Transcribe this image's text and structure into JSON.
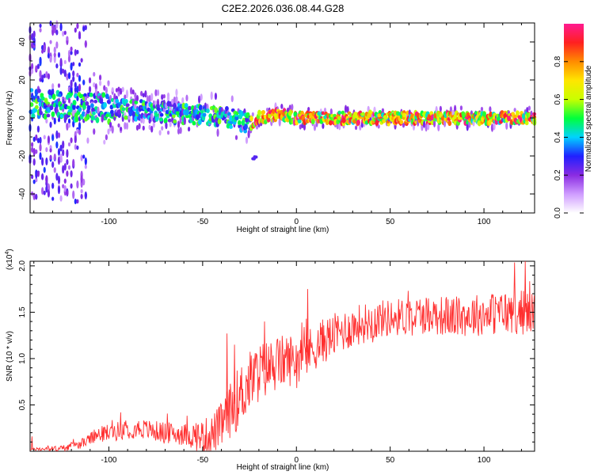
{
  "title": "C2E2.2026.036.08.44.G28",
  "chart_data": [
    {
      "type": "heatmap",
      "name": "spectrogram",
      "xlabel": "Height of straight line (km)",
      "ylabel": "Frequency (Hz)",
      "xlim": [
        -142,
        127
      ],
      "ylim": [
        -50,
        50
      ],
      "xticks": [
        -100,
        -50,
        0,
        50,
        100
      ],
      "yticks": [
        -40,
        -20,
        0,
        20,
        40
      ],
      "ridge_frequency_hz": [
        [
          -142,
          8
        ],
        [
          -120,
          6
        ],
        [
          -100,
          5
        ],
        [
          -80,
          4
        ],
        [
          -60,
          2
        ],
        [
          -40,
          1
        ],
        [
          -25,
          -3
        ],
        [
          -20,
          0
        ],
        [
          -15,
          1
        ],
        [
          -10,
          2
        ],
        [
          0,
          0
        ],
        [
          30,
          0
        ],
        [
          60,
          0
        ],
        [
          100,
          0
        ],
        [
          127,
          0
        ]
      ],
      "colorbar": {
        "label": "Normalized spectral amplitude",
        "range": [
          0.0,
          1.0
        ],
        "ticks": [
          "0.0",
          "0.2",
          "0.4",
          "0.6",
          "0.8"
        ],
        "colors": [
          "#ffffff",
          "#cf9cff",
          "#8a2be2",
          "#2020ff",
          "#00d2ff",
          "#00ff3c",
          "#c8ff00",
          "#ffe600",
          "#ff8c00",
          "#ff2020",
          "#ff1a90"
        ]
      }
    },
    {
      "type": "line",
      "name": "snr",
      "xlabel": "Height of straight line (km)",
      "ylabel": "SNR (10 * v/v)",
      "y_multiplier_label": "(x10",
      "y_multiplier_exp": "4",
      "y_multiplier_close": ")",
      "xlim": [
        -142,
        127
      ],
      "ylim": [
        0,
        2.05
      ],
      "xticks": [
        -100,
        -50,
        0,
        50,
        100
      ],
      "yticks": [
        0.5,
        1.0,
        1.5,
        2.0
      ],
      "ytick_labels": [
        "0.5",
        "1.0",
        "1.5",
        "2.0"
      ],
      "series_color": "#ff3030",
      "trend": [
        [
          -142,
          0.02
        ],
        [
          -125,
          0.03
        ],
        [
          -115,
          0.08
        ],
        [
          -105,
          0.18
        ],
        [
          -95,
          0.22
        ],
        [
          -85,
          0.25
        ],
        [
          -70,
          0.2
        ],
        [
          -60,
          0.18
        ],
        [
          -50,
          0.16
        ],
        [
          -45,
          0.18
        ],
        [
          -40,
          0.28
        ],
        [
          -35,
          0.45
        ],
        [
          -30,
          0.6
        ],
        [
          -25,
          0.75
        ],
        [
          -20,
          0.85
        ],
        [
          -15,
          0.9
        ],
        [
          -10,
          0.95
        ],
        [
          -5,
          0.98
        ],
        [
          0,
          1.0
        ],
        [
          5,
          1.05
        ],
        [
          15,
          1.2
        ],
        [
          25,
          1.3
        ],
        [
          35,
          1.38
        ],
        [
          45,
          1.43
        ],
        [
          55,
          1.45
        ],
        [
          70,
          1.48
        ],
        [
          85,
          1.45
        ],
        [
          100,
          1.48
        ],
        [
          115,
          1.5
        ],
        [
          127,
          1.5
        ]
      ],
      "noise_amplitude": [
        [
          -142,
          0.01
        ],
        [
          -115,
          0.05
        ],
        [
          -100,
          0.1
        ],
        [
          -60,
          0.12
        ],
        [
          -40,
          0.25
        ],
        [
          -30,
          0.35
        ],
        [
          -10,
          0.3
        ],
        [
          10,
          0.25
        ],
        [
          50,
          0.2
        ],
        [
          127,
          0.25
        ]
      ],
      "peaks": [
        [
          -141,
          0.16
        ],
        [
          -37,
          1.27
        ],
        [
          -33,
          1.15
        ],
        [
          -17,
          1.4
        ],
        [
          6,
          1.75
        ],
        [
          122,
          2.05
        ]
      ]
    }
  ]
}
